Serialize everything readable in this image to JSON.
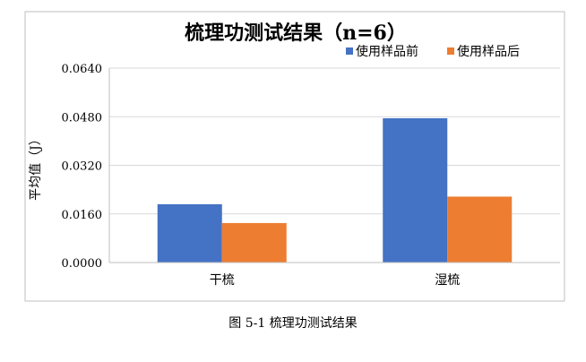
{
  "chart_data": {
    "type": "bar",
    "title": "梳理功测试结果（n=6）",
    "ylabel": "平均值（J）",
    "xlabel": "",
    "categories": [
      "干梳",
      "湿梳"
    ],
    "series": [
      {
        "name": "使用样品前",
        "values": [
          0.0192,
          0.0475
        ],
        "color": "#4472C4"
      },
      {
        "name": "使用样品后",
        "values": [
          0.013,
          0.0217
        ],
        "color": "#ED7D31"
      }
    ],
    "ylim": [
      0,
      0.064
    ],
    "yticks": [
      "0.0000",
      "0.0160",
      "0.0320",
      "0.0480",
      "0.0640"
    ],
    "grid": true,
    "legend_position": "top-right"
  },
  "caption": "图 5-1  梳理功测试结果"
}
